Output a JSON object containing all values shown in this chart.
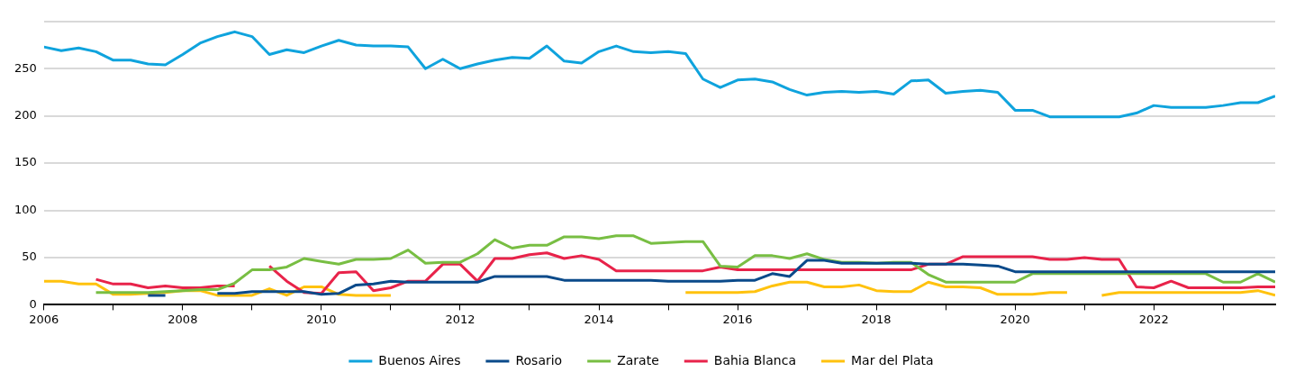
{
  "chart_data": {
    "type": "line",
    "x": [
      2006,
      2006.25,
      2006.5,
      2006.75,
      2007,
      2007.25,
      2007.5,
      2007.75,
      2008,
      2008.25,
      2008.5,
      2008.75,
      2009,
      2009.25,
      2009.5,
      2009.75,
      2010,
      2010.25,
      2010.5,
      2010.75,
      2011,
      2011.25,
      2011.5,
      2011.75,
      2012,
      2012.25,
      2012.5,
      2012.75,
      2013,
      2013.25,
      2013.5,
      2013.75,
      2014,
      2014.25,
      2014.5,
      2014.75,
      2015,
      2015.25,
      2015.5,
      2015.75,
      2016,
      2016.25,
      2016.5,
      2016.75,
      2017,
      2017.25,
      2017.5,
      2017.75,
      2018,
      2018.25,
      2018.5,
      2018.75,
      2019,
      2019.25,
      2019.5,
      2019.75,
      2020,
      2020.25,
      2020.5,
      2020.75,
      2021,
      2021.25,
      2021.5,
      2021.75,
      2022,
      2022.25,
      2022.5,
      2022.75,
      2023,
      2023.25,
      2023.5,
      2023.75
    ],
    "series": [
      {
        "name": "Buenos Aires",
        "color": "#0fa3dd",
        "values": [
          273,
          269,
          272,
          268,
          259,
          259,
          255,
          254,
          265,
          277,
          284,
          289,
          284,
          265,
          270,
          267,
          274,
          280,
          275,
          274,
          274,
          273,
          250,
          260,
          250,
          255,
          259,
          262,
          261,
          274,
          258,
          256,
          268,
          274,
          268,
          267,
          268,
          266,
          239,
          230,
          238,
          239,
          236,
          228,
          222,
          225,
          226,
          225,
          226,
          223,
          237,
          238,
          224,
          226,
          227,
          225,
          206,
          206,
          199,
          199,
          199,
          199,
          199,
          203,
          211,
          209,
          209,
          209,
          211,
          214,
          214,
          221
        ]
      },
      {
        "name": "Rosario",
        "color": "#0a4a8a",
        "values": [
          null,
          null,
          null,
          null,
          null,
          null,
          10,
          10,
          null,
          null,
          12,
          12,
          14,
          14,
          14,
          14,
          11,
          12,
          21,
          22,
          25,
          24,
          24,
          24,
          24,
          24,
          30,
          30,
          30,
          30,
          26,
          26,
          26,
          26,
          26,
          26,
          25,
          25,
          25,
          25,
          26,
          26,
          33,
          30,
          47,
          47,
          44,
          44,
          44,
          44,
          44,
          43,
          43,
          43,
          42,
          41,
          35,
          35,
          35,
          35,
          35,
          35,
          35,
          35,
          35,
          35,
          35,
          35,
          35,
          35,
          35,
          35
        ]
      },
      {
        "name": "Zarate",
        "color": "#78be43",
        "values": [
          null,
          null,
          null,
          13,
          13,
          13,
          13,
          14,
          15,
          16,
          16,
          23,
          37,
          37,
          40,
          49,
          46,
          43,
          48,
          48,
          49,
          58,
          44,
          45,
          45,
          54,
          69,
          60,
          63,
          63,
          72,
          72,
          70,
          73,
          73,
          65,
          66,
          67,
          67,
          41,
          40,
          52,
          52,
          49,
          54,
          48,
          45,
          45,
          44,
          45,
          45,
          32,
          24,
          24,
          24,
          24,
          24,
          33,
          33,
          33,
          33,
          33,
          33,
          33,
          33,
          33,
          33,
          33,
          24,
          24,
          33,
          24
        ]
      },
      {
        "name": "Bahia Blanca",
        "color": "#e8234a",
        "values": [
          null,
          null,
          null,
          27,
          22,
          22,
          18,
          20,
          18,
          18,
          20,
          20,
          null,
          41,
          25,
          13,
          12,
          34,
          35,
          15,
          18,
          25,
          25,
          43,
          43,
          25,
          49,
          49,
          53,
          55,
          49,
          52,
          48,
          36,
          36,
          36,
          36,
          36,
          36,
          40,
          37,
          37,
          37,
          37,
          37,
          37,
          37,
          37,
          37,
          37,
          37,
          43,
          43,
          51,
          51,
          51,
          51,
          51,
          48,
          48,
          50,
          48,
          48,
          19,
          18,
          25,
          18,
          18,
          18,
          18,
          19,
          19
        ]
      },
      {
        "name": "Mar del Plata",
        "color": "#ffc20e",
        "values": [
          25,
          25,
          22,
          22,
          11,
          11,
          12,
          13,
          15,
          15,
          10,
          10,
          10,
          17,
          10,
          19,
          19,
          11,
          10,
          10,
          10,
          null,
          null,
          null,
          null,
          null,
          null,
          null,
          null,
          null,
          null,
          null,
          null,
          null,
          null,
          null,
          null,
          13,
          13,
          13,
          13,
          14,
          20,
          24,
          24,
          19,
          19,
          21,
          15,
          14,
          14,
          24,
          19,
          19,
          18,
          11,
          11,
          11,
          13,
          13,
          null,
          10,
          13,
          13,
          13,
          13,
          13,
          13,
          13,
          13,
          15,
          10
        ]
      }
    ],
    "xlim": [
      2006,
      2023.75
    ],
    "xticks": [
      2006,
      {
        "value": 2007,
        "label": null
      },
      2008,
      {
        "value": 2009,
        "label": null
      },
      2010,
      {
        "value": 2011,
        "label": null
      },
      2012,
      {
        "value": 2013,
        "label": null
      },
      2014,
      {
        "value": 2015,
        "label": null
      },
      2016,
      {
        "value": 2017,
        "label": null
      },
      2018,
      {
        "value": 2019,
        "label": null
      },
      2020,
      {
        "value": 2021,
        "label": null
      },
      2022,
      {
        "value": 2023,
        "label": null
      }
    ],
    "ylim": [
      0,
      300
    ],
    "yticks": [
      0,
      50,
      100,
      150,
      200,
      250,
      {
        "value": 300,
        "label": null
      }
    ],
    "grid": "y",
    "legend": "bottom",
    "marker": "none",
    "line_style": "solid"
  }
}
